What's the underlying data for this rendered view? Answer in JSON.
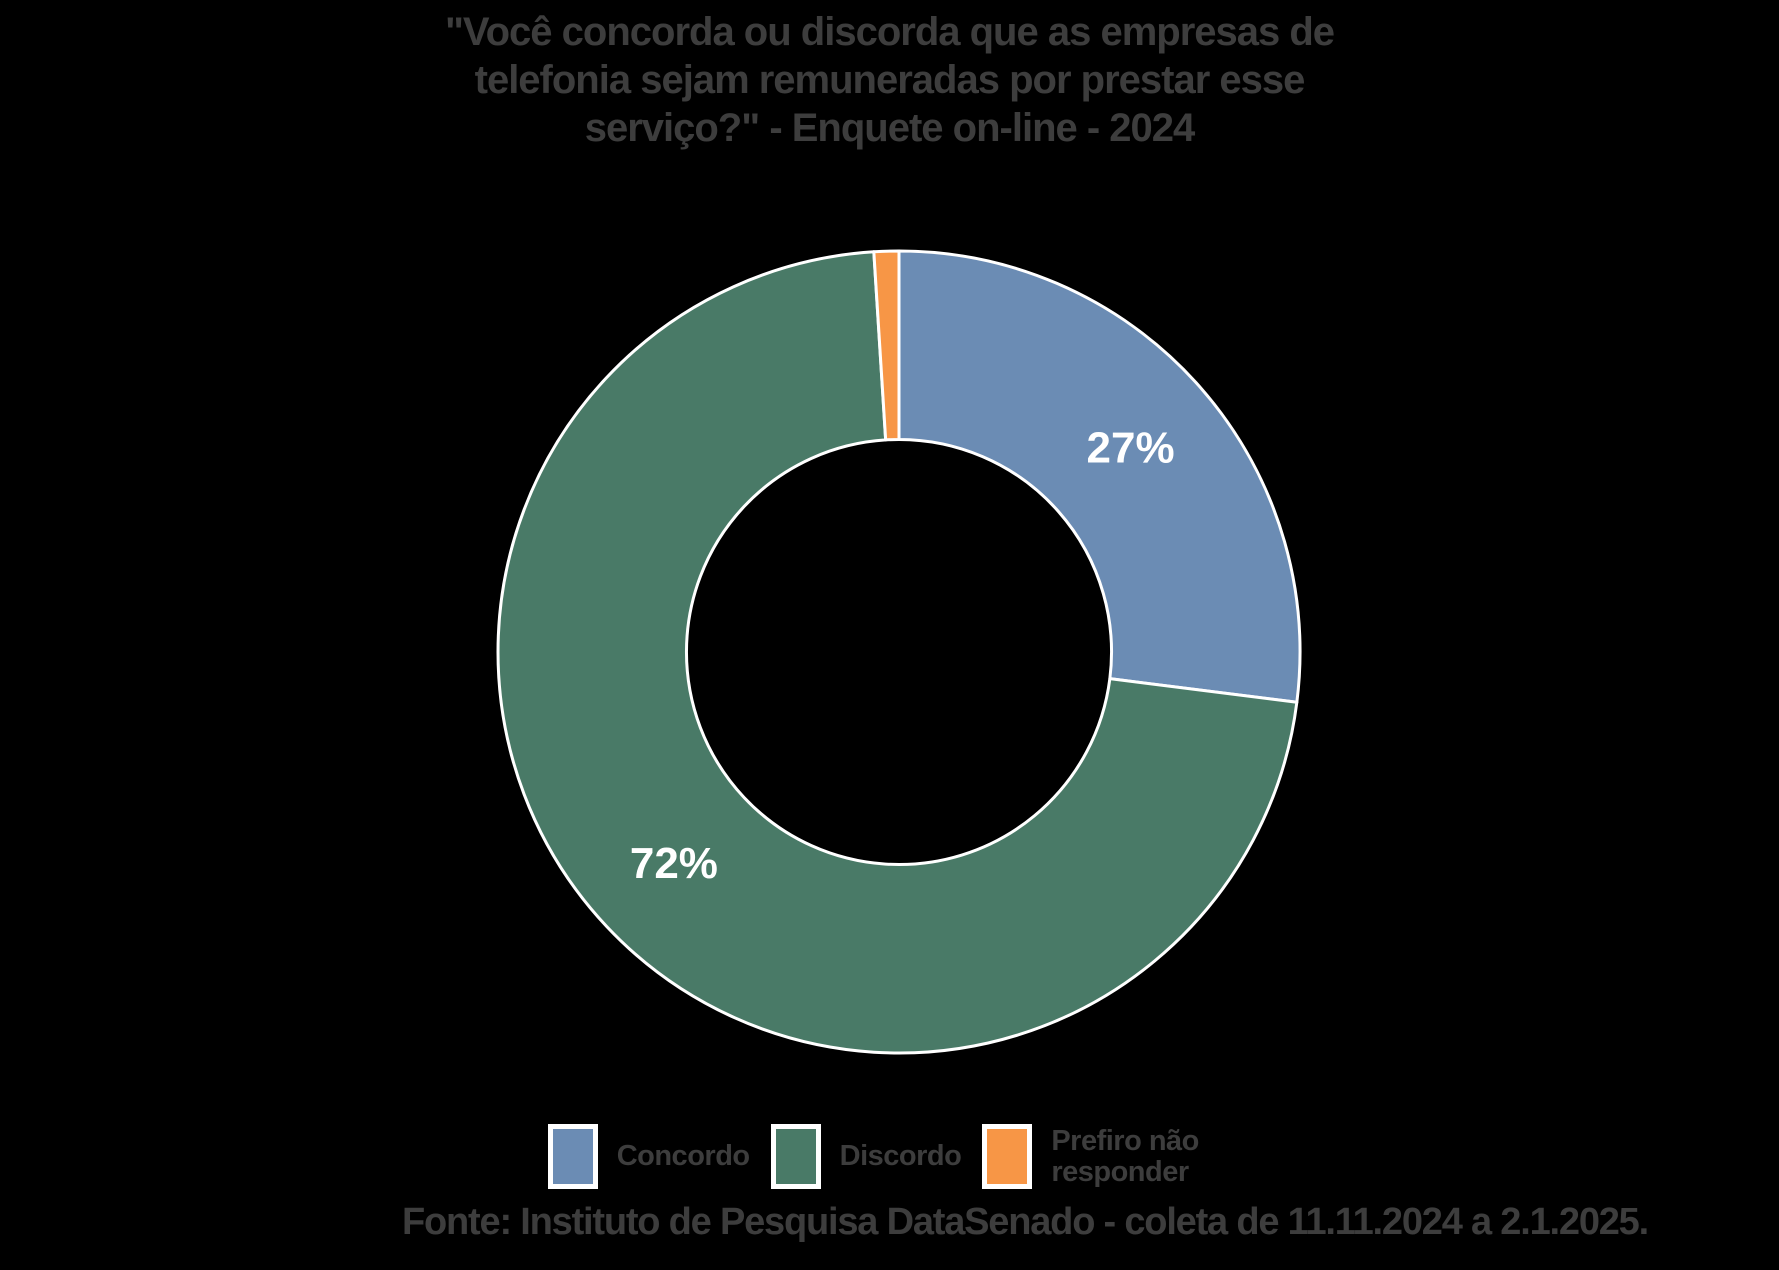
{
  "page": {
    "background_color": "#000000",
    "text_color": "#3d3d3d"
  },
  "title": {
    "lines": [
      "\"Você concorda ou discorda que as empresas de",
      "telefonia sejam remuneradas por prestar esse",
      "serviço?\" - Enquete on-line - 2024"
    ]
  },
  "chart_data": {
    "type": "pie",
    "subtype": "donut",
    "title": "\"Você concorda ou discorda que as empresas de telefonia sejam remuneradas por prestar esse serviço?\" - Enquete on-line - 2024",
    "start_angle_deg": 0,
    "direction": "clockwise",
    "donut_hole_ratio": 0.53,
    "slice_border_color": "#ffffff",
    "data_label_color": "#ffffff",
    "legend_position": "bottom",
    "slices": [
      {
        "label": "Concordo",
        "value": 27,
        "percent_label": "27%",
        "color": "#6b8cb4",
        "show_label": true
      },
      {
        "label": "Discordo",
        "value": 72,
        "percent_label": "72%",
        "color": "#497a67",
        "show_label": true
      },
      {
        "label": "Prefiro não responder",
        "value": 1,
        "percent_label": "1%",
        "color": "#f79646",
        "show_label": false
      }
    ]
  },
  "legend": {
    "items": [
      {
        "label": "Concordo",
        "color": "#6b8cb4"
      },
      {
        "label": "Discordo",
        "color": "#497a67"
      },
      {
        "label": "Prefiro não responder",
        "color": "#f79646"
      }
    ]
  },
  "footer": {
    "text": "Fonte: Instituto de Pesquisa DataSenado - coleta de 11.11.2024 a 2.1.2025."
  }
}
